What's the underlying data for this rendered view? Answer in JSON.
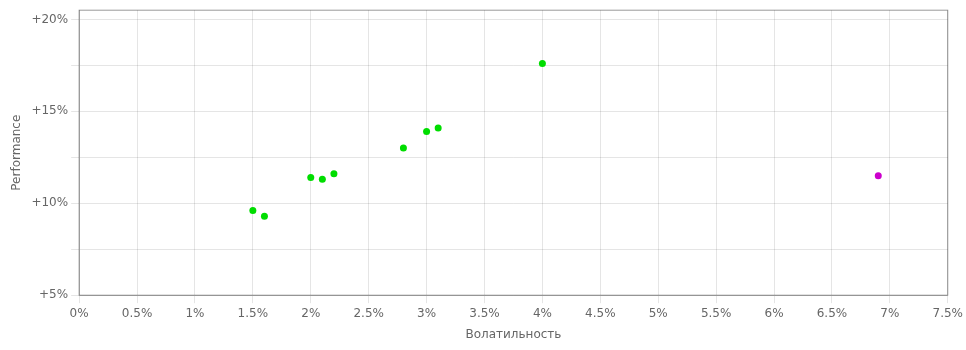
{
  "chart_data": {
    "type": "scatter",
    "xlabel": "Волатильность",
    "ylabel": "Performance",
    "xlim": [
      0.0,
      0.075
    ],
    "ylim": [
      0.05,
      0.205
    ],
    "xticks": [
      {
        "value": 0.0,
        "label": "0%"
      },
      {
        "value": 0.005,
        "label": "0.5%"
      },
      {
        "value": 0.01,
        "label": "1%"
      },
      {
        "value": 0.015,
        "label": "1.5%"
      },
      {
        "value": 0.02,
        "label": "2%"
      },
      {
        "value": 0.025,
        "label": "2.5%"
      },
      {
        "value": 0.03,
        "label": "3%"
      },
      {
        "value": 0.035,
        "label": "3.5%"
      },
      {
        "value": 0.04,
        "label": "4%"
      },
      {
        "value": 0.045,
        "label": "4.5%"
      },
      {
        "value": 0.05,
        "label": "5%"
      },
      {
        "value": 0.055,
        "label": "5.5%"
      },
      {
        "value": 0.06,
        "label": "6%"
      },
      {
        "value": 0.065,
        "label": "6.5%"
      },
      {
        "value": 0.07,
        "label": "7%"
      },
      {
        "value": 0.075,
        "label": "7.5%"
      }
    ],
    "yticks": [
      {
        "value": 0.05,
        "label": "+5%"
      },
      {
        "value": 0.075,
        "label": null
      },
      {
        "value": 0.1,
        "label": "+10%"
      },
      {
        "value": 0.125,
        "label": null
      },
      {
        "value": 0.15,
        "label": "+15%"
      },
      {
        "value": 0.175,
        "label": null
      },
      {
        "value": 0.2,
        "label": "+20%"
      }
    ],
    "grid": true,
    "series": [
      {
        "color": "#00dd00",
        "x": [
          0.015,
          0.016,
          0.02,
          0.021,
          0.022,
          0.028,
          0.03,
          0.031,
          0.04
        ],
        "values": [
          0.096,
          0.093,
          0.114,
          0.113,
          0.116,
          0.13,
          0.139,
          0.141,
          0.176
        ]
      },
      {
        "color": "#cc00cc",
        "x": [
          0.069
        ],
        "values": [
          0.115
        ]
      }
    ]
  }
}
